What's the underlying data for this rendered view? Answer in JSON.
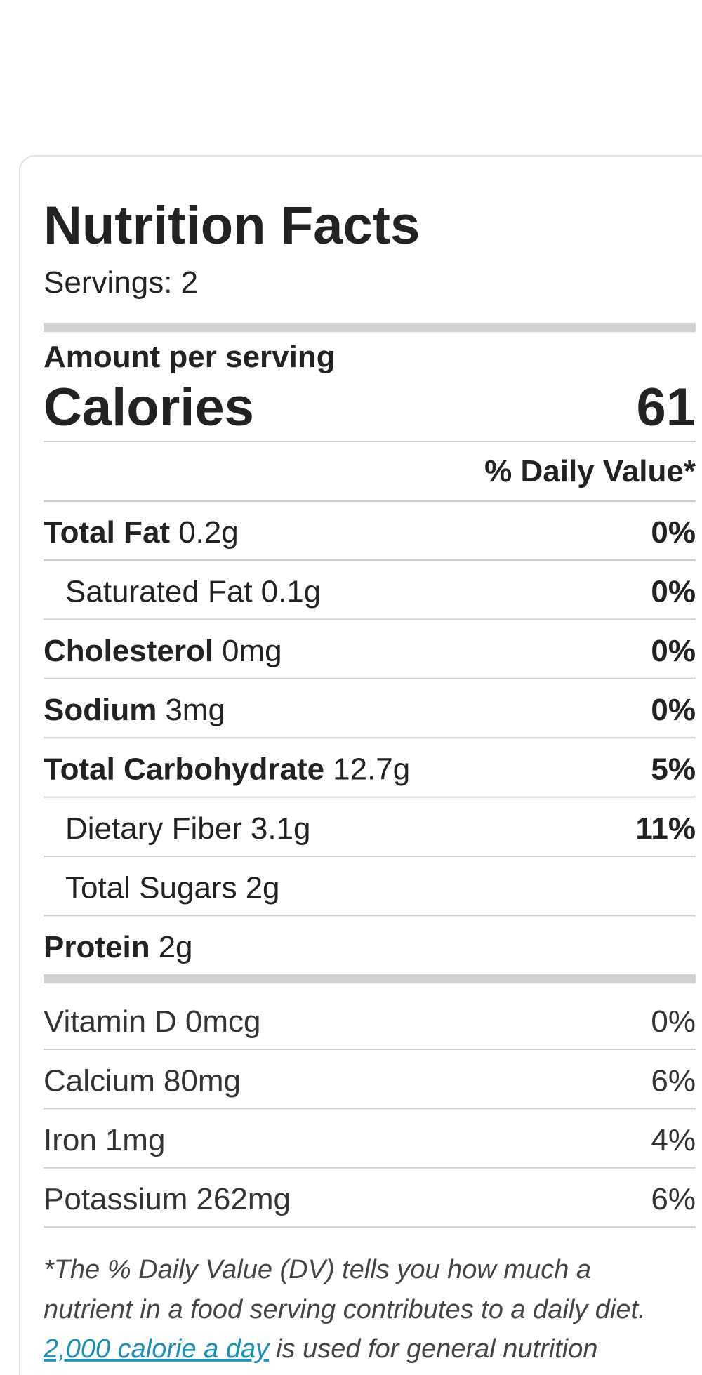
{
  "label": {
    "title": "Nutrition Facts",
    "servings": "Servings: 2",
    "amount_per_serving": "Amount per serving",
    "calories_label": "Calories",
    "calories_value": "61",
    "daily_value_header": "% Daily Value*",
    "nutrients": [
      {
        "name": "Total Fat",
        "amount": "0.2g",
        "dv": "0%"
      },
      {
        "name": "Saturated Fat",
        "amount": "0.1g",
        "dv": "0%"
      },
      {
        "name": "Cholesterol",
        "amount": "0mg",
        "dv": "0%"
      },
      {
        "name": "Sodium",
        "amount": "3mg",
        "dv": "0%"
      },
      {
        "name": "Total Carbohydrate",
        "amount": "12.7g",
        "dv": "5%"
      },
      {
        "name": "Dietary Fiber",
        "amount": "3.1g",
        "dv": "11%"
      },
      {
        "name": "Total Sugars",
        "amount": "2g"
      },
      {
        "name": "Protein",
        "amount": "2g"
      }
    ],
    "vitamins": [
      {
        "name": "Vitamin D",
        "amount": "0mcg",
        "dv": "0%"
      },
      {
        "name": "Calcium",
        "amount": "80mg",
        "dv": "6%"
      },
      {
        "name": "Iron",
        "amount": "1mg",
        "dv": "4%"
      },
      {
        "name": "Potassium",
        "amount": "262mg",
        "dv": "6%"
      }
    ],
    "footnote": {
      "line1": "*The % Daily Value (DV) tells you how much a",
      "line2": "nutrient in a food serving contributes to a daily diet.",
      "link": "2,000 calorie a day",
      "line3_rest": "is used for general nutrition"
    }
  }
}
